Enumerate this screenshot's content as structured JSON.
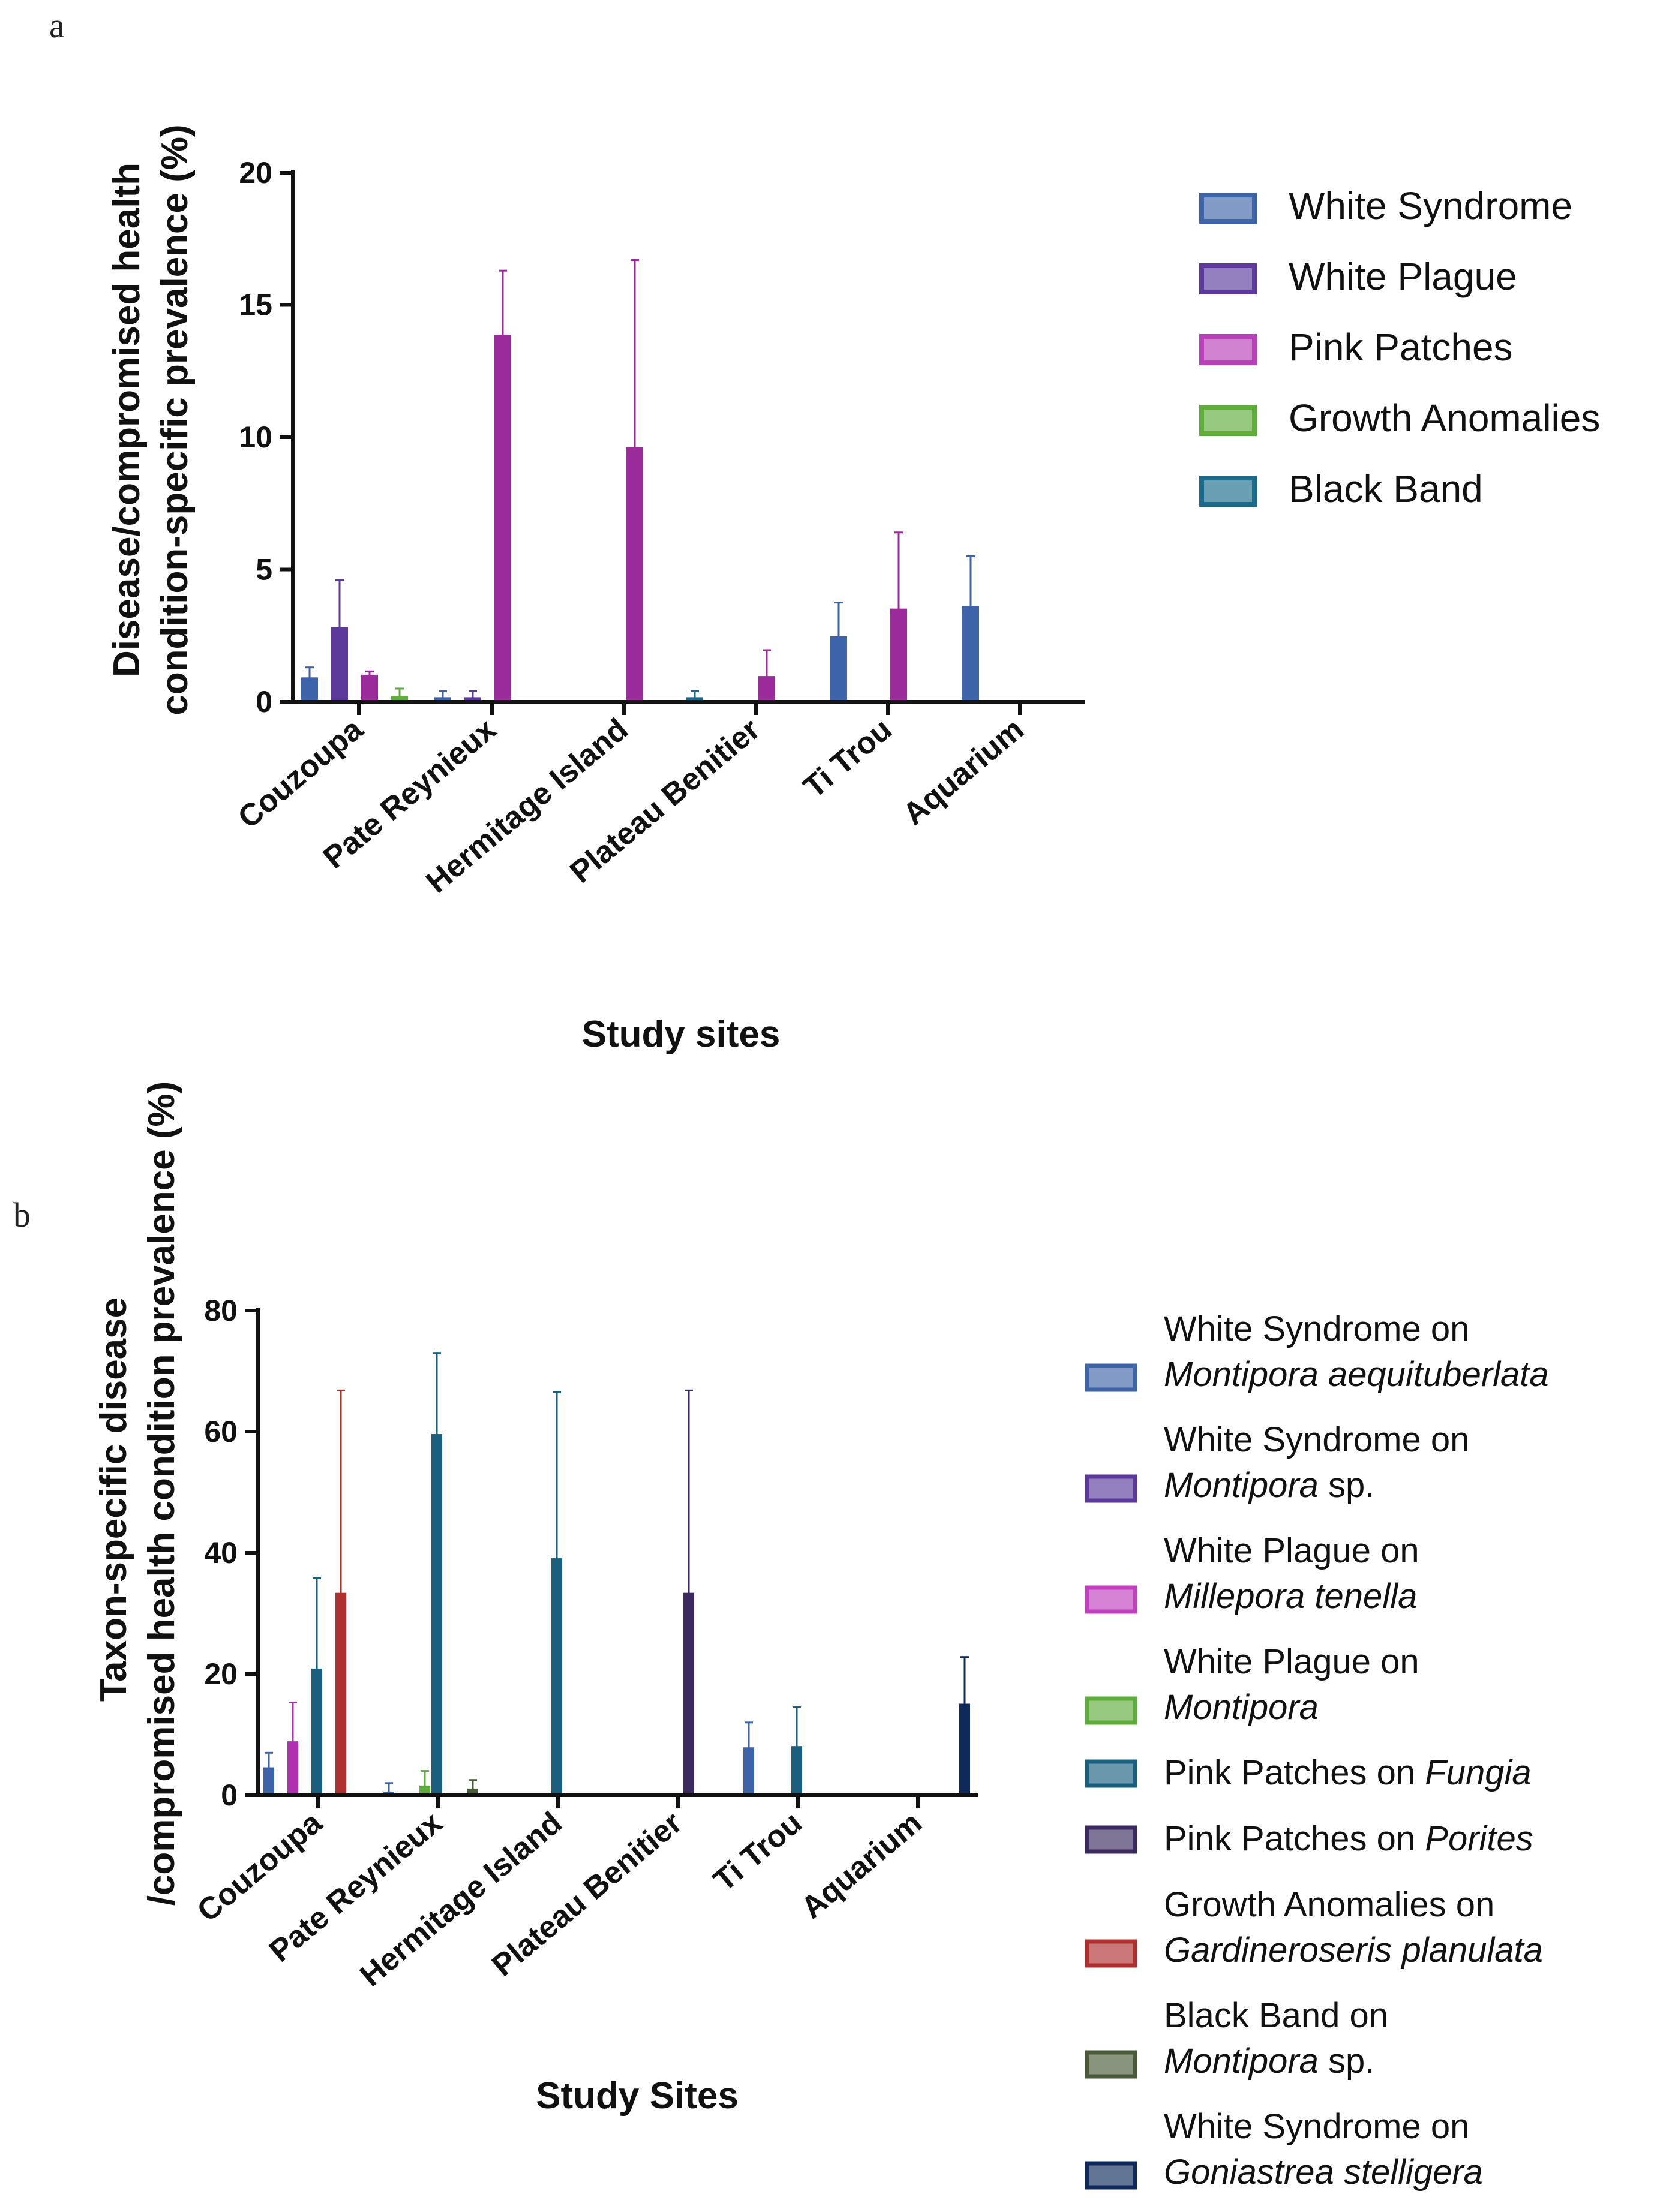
{
  "panels": [
    {
      "letter": "a",
      "chart_data": {
        "type": "bar",
        "title": "",
        "xlabel": "Study sites",
        "ylabel_lines": [
          "Disease/compromised health",
          "condition-specific prevalence (%)"
        ],
        "ylim": [
          0,
          20
        ],
        "yticks": [
          0,
          5,
          10,
          15,
          20
        ],
        "categories": [
          "Couzoupa",
          "Pate Reynieux",
          "Hermitage Island",
          "Plateau Benitier",
          "Ti Trou",
          "Aquarium"
        ],
        "legend_position": "top-right",
        "series": [
          {
            "name": "White Syndrome",
            "color": "#3d63a8",
            "values": [
              0.9,
              0.15,
              0,
              0,
              2.45,
              3.6
            ],
            "errors": [
              0.4,
              0.25,
              0,
              0,
              1.3,
              1.9
            ]
          },
          {
            "name": "White Plague",
            "color": "#5b3a9c",
            "values": [
              2.8,
              0.15,
              0,
              0,
              0,
              0
            ],
            "errors": [
              1.8,
              0.25,
              0,
              0,
              0,
              0
            ]
          },
          {
            "name": "Pink Patches",
            "color": "#9b2a9a",
            "values": [
              1.0,
              13.85,
              9.6,
              0.95,
              3.5,
              0
            ],
            "errors": [
              0.15,
              2.45,
              7.1,
              1.0,
              2.9,
              0
            ]
          },
          {
            "name": "Growth Anomalies",
            "color": "#5fae3c",
            "values": [
              0.2,
              0,
              0,
              0,
              0,
              0
            ],
            "errors": [
              0.3,
              0,
              0,
              0,
              0,
              0
            ]
          },
          {
            "name": "Black Band",
            "color": "#1a6b8a",
            "values": [
              0,
              0,
              0.15,
              0,
              0,
              0
            ],
            "errors": [
              0,
              0,
              0.25,
              0,
              0,
              0
            ]
          }
        ]
      },
      "legend": [
        {
          "line1": "White Syndrome",
          "color": "#3d63a8"
        },
        {
          "line1": "White Plague",
          "color": "#5b3a9c"
        },
        {
          "line1": "Pink Patches",
          "color": "#b840b8"
        },
        {
          "line1": "Growth Anomalies",
          "color": "#5fae3c"
        },
        {
          "line1": "Black Band",
          "color": "#1a6b8a"
        }
      ]
    },
    {
      "letter": "b",
      "chart_data": {
        "type": "bar",
        "title": "",
        "xlabel": "Study Sites",
        "ylabel_lines": [
          "Taxon-specific disease",
          "/compromised health condition prevalence (%)"
        ],
        "ylim": [
          0,
          80
        ],
        "yticks": [
          0,
          20,
          40,
          60,
          80
        ],
        "categories": [
          "Couzoupa",
          "Pate Reynieux",
          "Hermitage Island",
          "Plateau Benitier",
          "Ti Trou",
          "Aquarium"
        ],
        "legend_position": "right",
        "series": [
          {
            "name": "White Syndrome on Montipora aequituberlata",
            "color": "#3d63a8",
            "values": [
              4.5,
              0.5,
              0,
              0,
              7.8,
              0
            ],
            "errors": [
              2.5,
              1.5,
              0,
              0,
              4.2,
              0
            ]
          },
          {
            "name": "White Syndrome on Montipora sp.",
            "color": "#5b3a9c",
            "values": [
              0,
              0,
              0,
              0,
              0,
              0
            ],
            "errors": [
              0,
              0,
              0,
              0,
              0,
              0
            ]
          },
          {
            "name": "White Plague on Millepora tenella",
            "color": "#b030b0",
            "values": [
              8.8,
              0,
              0,
              0,
              0,
              0
            ],
            "errors": [
              6.5,
              0,
              0,
              0,
              0,
              0
            ]
          },
          {
            "name": "White Plague on Montipora",
            "color": "#5fae3c",
            "values": [
              0,
              1.5,
              0,
              0,
              0,
              0
            ],
            "errors": [
              0,
              2.5,
              0,
              0,
              0,
              0
            ]
          },
          {
            "name": "Pink Patches on Fungia",
            "color": "#1a5f7e",
            "values": [
              20.8,
              59.5,
              39,
              0,
              8,
              0
            ],
            "errors": [
              15,
              13.5,
              27.5,
              0,
              6.5,
              0
            ]
          },
          {
            "name": "Pink Patches on Porites",
            "color": "#3a2a5e",
            "values": [
              0,
              0,
              0,
              33.3,
              0,
              0
            ],
            "errors": [
              0,
              0,
              0,
              33.5,
              0,
              0
            ]
          },
          {
            "name": "Growth Anomalies on Gardineroseris planulata",
            "color": "#b03030",
            "values": [
              33.3,
              0,
              0,
              0,
              0,
              0
            ],
            "errors": [
              33.5,
              0,
              0,
              0,
              0,
              0
            ]
          },
          {
            "name": "Black Band on Montipora sp.",
            "color": "#4a5a3a",
            "values": [
              0,
              1.0,
              0,
              0,
              0,
              0
            ],
            "errors": [
              0,
              1.5,
              0,
              0,
              0,
              0
            ]
          },
          {
            "name": "White Syndrome on Goniastrea stelligera",
            "color": "#0f2a5a",
            "values": [
              0,
              0,
              0,
              0,
              0,
              15
            ],
            "errors": [
              0,
              0,
              0,
              0,
              0,
              7.8
            ]
          }
        ]
      },
      "legend": [
        {
          "line1": "White Syndrome on",
          "line2_italic": "Montipora aequituberlata",
          "line2_rest": "",
          "color": "#3d63a8"
        },
        {
          "line1": "White Syndrome on",
          "line2_italic": "Montipora",
          "line2_rest": " sp.",
          "color": "#5b3a9c"
        },
        {
          "line1": "White Plague on",
          "line2_italic": "Millepora tenella",
          "line2_rest": "",
          "color": "#c040c0"
        },
        {
          "line1": "White Plague on",
          "line2_italic": "Montipora",
          "line2_rest": "",
          "color": "#5fae3c"
        },
        {
          "line1_plain": "Pink Patches on ",
          "line1_italic": "Fungia",
          "color": "#1a5f7e"
        },
        {
          "line1_plain": "Pink Patches on ",
          "line1_italic": "Porites",
          "color": "#3a2a5e"
        },
        {
          "line1": "Growth Anomalies on",
          "line2_italic": "Gardineroseris planulata",
          "line2_rest": "",
          "color": "#b03030"
        },
        {
          "line1": "Black Band on",
          "line2_italic": "Montipora",
          "line2_rest": " sp.",
          "color": "#4a5a3a"
        },
        {
          "line1": "White Syndrome on",
          "line2_italic": "Goniastrea stelligera",
          "line2_rest": "",
          "color": "#0f2a5a"
        }
      ]
    }
  ]
}
